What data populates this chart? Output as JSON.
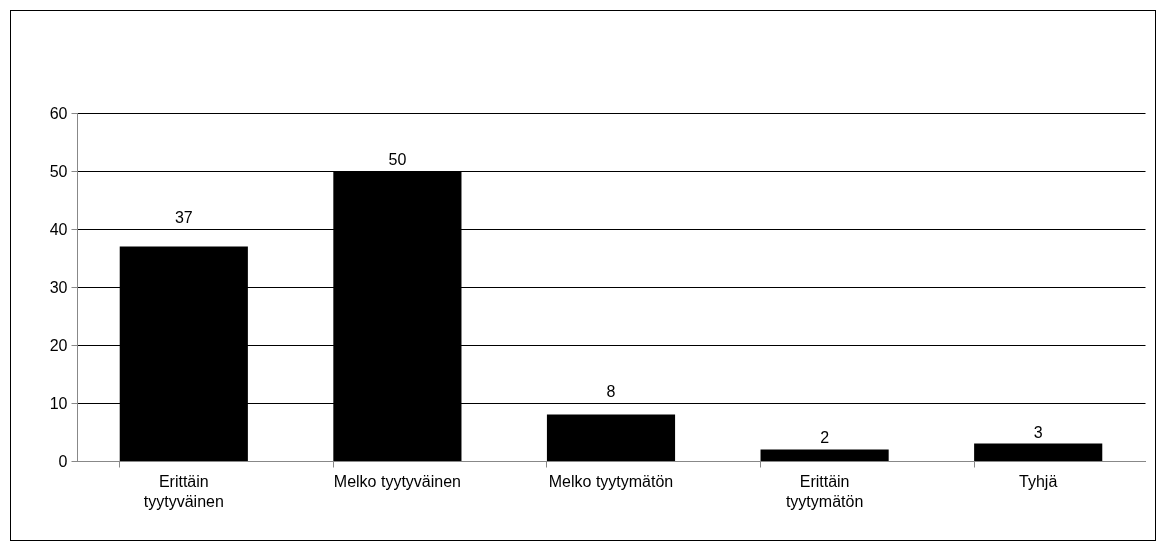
{
  "chart_data": {
    "type": "bar",
    "categories": [
      "Erittäin tyytyväinen",
      "Melko tyytyväinen",
      "Melko tyytymätön",
      "Erittäin tyytymätön",
      "Tyhjä"
    ],
    "values": [
      37,
      50,
      8,
      2,
      3
    ],
    "color": "#000000",
    "ylim": [
      0,
      60
    ],
    "yticks": [
      0,
      10,
      20,
      30,
      40,
      50,
      60
    ],
    "grid": "y",
    "data_labels": true
  }
}
